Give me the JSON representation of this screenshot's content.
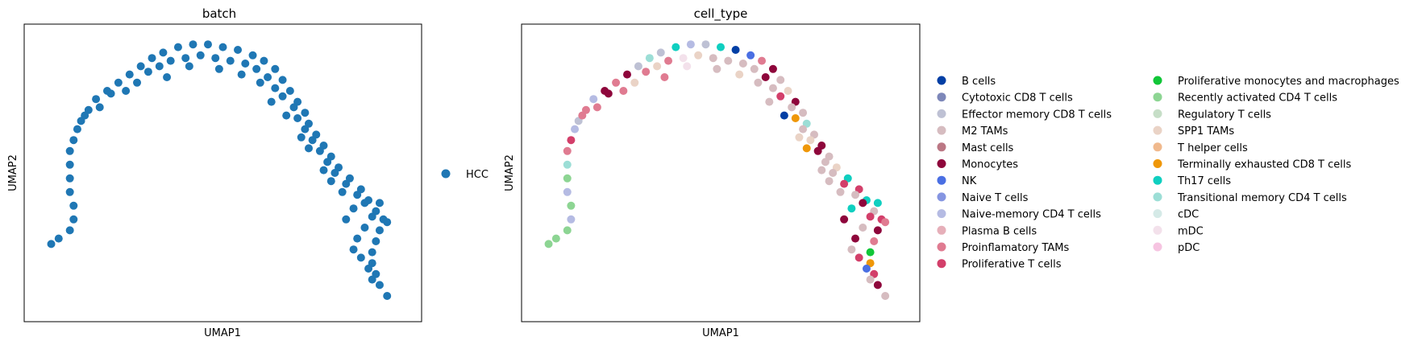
{
  "chart_data": [
    {
      "type": "scatter",
      "title": "batch",
      "xlabel": "UMAP1",
      "ylabel": "UMAP2",
      "xlim": [
        0,
        10
      ],
      "ylim": [
        0,
        10
      ],
      "grid": false,
      "ticks": false,
      "legend_position": "right",
      "legend": [
        {
          "name": "HCC",
          "color": "#1f77b4"
        }
      ],
      "series": [
        {
          "name": "HCC",
          "color": "#1f77b4",
          "description": "arc-shaped point cloud running from lower-left up over the top and down to lower-right",
          "points": [
            [
              0.4,
              2.4
            ],
            [
              0.6,
              2.6
            ],
            [
              0.9,
              2.9
            ],
            [
              1.0,
              3.3
            ],
            [
              1.0,
              3.8
            ],
            [
              0.9,
              4.3
            ],
            [
              0.9,
              4.8
            ],
            [
              0.9,
              5.3
            ],
            [
              0.9,
              5.8
            ],
            [
              1.0,
              6.2
            ],
            [
              1.1,
              6.6
            ],
            [
              1.2,
              6.9
            ],
            [
              1.4,
              7.3
            ],
            [
              1.6,
              7.7
            ],
            [
              1.9,
              8.0
            ],
            [
              2.2,
              8.3
            ],
            [
              2.5,
              8.6
            ],
            [
              2.8,
              8.9
            ],
            [
              3.1,
              9.2
            ],
            [
              3.4,
              9.4
            ],
            [
              3.8,
              9.6
            ],
            [
              4.2,
              9.7
            ],
            [
              4.6,
              9.7
            ],
            [
              5.0,
              9.6
            ],
            [
              5.4,
              9.5
            ],
            [
              5.8,
              9.3
            ],
            [
              6.1,
              9.1
            ],
            [
              6.4,
              8.8
            ],
            [
              6.6,
              8.4
            ],
            [
              6.8,
              8.0
            ],
            [
              7.0,
              7.6
            ],
            [
              7.2,
              7.2
            ],
            [
              7.3,
              6.8
            ],
            [
              7.5,
              6.4
            ],
            [
              7.7,
              6.0
            ],
            [
              7.9,
              5.6
            ],
            [
              8.1,
              5.2
            ],
            [
              8.4,
              4.8
            ],
            [
              8.7,
              4.4
            ],
            [
              8.9,
              4.0
            ],
            [
              9.1,
              3.6
            ],
            [
              9.3,
              3.3
            ],
            [
              9.2,
              2.9
            ],
            [
              9.1,
              2.5
            ],
            [
              9.0,
              2.1
            ],
            [
              9.0,
              1.7
            ],
            [
              9.1,
              1.3
            ],
            [
              9.2,
              0.9
            ],
            [
              9.4,
              0.5
            ],
            [
              1.3,
              7.1
            ],
            [
              1.7,
              7.4
            ],
            [
              2.0,
              7.9
            ],
            [
              2.4,
              8.0
            ],
            [
              2.7,
              8.3
            ],
            [
              3.0,
              8.7
            ],
            [
              3.3,
              8.9
            ],
            [
              3.6,
              9.1
            ],
            [
              4.0,
              9.2
            ],
            [
              4.4,
              9.3
            ],
            [
              4.8,
              9.2
            ],
            [
              5.2,
              9.1
            ],
            [
              5.6,
              9.0
            ],
            [
              5.9,
              8.8
            ],
            [
              6.2,
              8.5
            ],
            [
              6.4,
              8.1
            ],
            [
              6.6,
              7.8
            ],
            [
              6.9,
              7.4
            ],
            [
              7.0,
              7.0
            ],
            [
              7.2,
              6.6
            ],
            [
              7.4,
              6.2
            ],
            [
              7.6,
              5.8
            ],
            [
              7.8,
              5.4
            ],
            [
              8.0,
              5.0
            ],
            [
              8.3,
              4.6
            ],
            [
              8.6,
              4.2
            ],
            [
              8.8,
              3.9
            ],
            [
              9.0,
              3.4
            ],
            [
              8.8,
              3.0
            ],
            [
              8.6,
              2.6
            ],
            [
              8.5,
              2.2
            ],
            [
              8.7,
              1.9
            ],
            [
              8.9,
              1.5
            ],
            [
              9.0,
              1.1
            ],
            [
              3.5,
              8.5
            ],
            [
              4.1,
              8.9
            ],
            [
              4.9,
              8.8
            ],
            [
              5.5,
              8.6
            ],
            [
              6.0,
              8.3
            ],
            [
              6.3,
              7.6
            ],
            [
              6.7,
              7.1
            ],
            [
              7.1,
              6.3
            ],
            [
              7.3,
              5.9
            ],
            [
              7.7,
              5.1
            ],
            [
              8.2,
              4.3
            ],
            [
              8.5,
              3.7
            ],
            [
              9.2,
              3.9
            ],
            [
              9.4,
              3.2
            ],
            [
              8.3,
              3.3
            ],
            [
              7.9,
              4.7
            ]
          ]
        }
      ]
    },
    {
      "type": "scatter",
      "title": "cell_type",
      "xlabel": "UMAP1",
      "ylabel": "UMAP2",
      "xlim": [
        0,
        10
      ],
      "ylim": [
        0,
        10
      ],
      "grid": false,
      "ticks": false,
      "legend_position": "right",
      "legend": [
        {
          "name": "B cells",
          "color": "#023fa5"
        },
        {
          "name": "Cytotoxic CD8 T cells",
          "color": "#7d87b9"
        },
        {
          "name": "Effector memory CD8 T cells",
          "color": "#bec1d4"
        },
        {
          "name": "M2 TAMs",
          "color": "#d6bcc0"
        },
        {
          "name": "Mast cells",
          "color": "#bb7784"
        },
        {
          "name": "Monocytes",
          "color": "#8e063b"
        },
        {
          "name": "NK",
          "color": "#4a6fe3"
        },
        {
          "name": "Naive T cells",
          "color": "#8595e1"
        },
        {
          "name": "Naive-memory CD4 T cells",
          "color": "#b5bbe3"
        },
        {
          "name": "Plasma B cells",
          "color": "#e6afb9"
        },
        {
          "name": "Proinflamatory TAMs",
          "color": "#e07b91"
        },
        {
          "name": "Proliferative T cells",
          "color": "#d33f6a"
        },
        {
          "name": "Proliferative monocytes and macrophages",
          "color": "#11c638"
        },
        {
          "name": "Recently activated CD4 T cells",
          "color": "#8dd593"
        },
        {
          "name": "Regulatory T cells",
          "color": "#c6dec7"
        },
        {
          "name": "SPP1 TAMs",
          "color": "#ead3c6"
        },
        {
          "name": "T helper cells",
          "color": "#f0b98d"
        },
        {
          "name": "Terminally exhausted CD8 T cells",
          "color": "#ef9708"
        },
        {
          "name": "Th17 cells",
          "color": "#0fcfc0"
        },
        {
          "name": "Transitional memory CD4 T cells",
          "color": "#9cded6"
        },
        {
          "name": "cDC",
          "color": "#d5eae7"
        },
        {
          "name": "mDC",
          "color": "#f3e1eb"
        },
        {
          "name": "pDC",
          "color": "#f6c4e1"
        }
      ],
      "series_points": [
        [
          0.4,
          2.4,
          13
        ],
        [
          0.6,
          2.6,
          13
        ],
        [
          0.9,
          2.9,
          13
        ],
        [
          1.0,
          3.3,
          8
        ],
        [
          1.0,
          3.8,
          13
        ],
        [
          0.9,
          4.3,
          8
        ],
        [
          0.9,
          4.8,
          13
        ],
        [
          0.9,
          5.3,
          19
        ],
        [
          0.9,
          5.8,
          10
        ],
        [
          1.0,
          6.2,
          11
        ],
        [
          1.1,
          6.6,
          8
        ],
        [
          1.2,
          6.9,
          2
        ],
        [
          1.4,
          7.3,
          10
        ],
        [
          1.6,
          7.7,
          8
        ],
        [
          1.9,
          8.0,
          5
        ],
        [
          2.2,
          8.3,
          10
        ],
        [
          2.5,
          8.6,
          5
        ],
        [
          2.8,
          8.9,
          2
        ],
        [
          3.1,
          9.2,
          19
        ],
        [
          3.4,
          9.4,
          2
        ],
        [
          3.8,
          9.6,
          18
        ],
        [
          4.2,
          9.7,
          8
        ],
        [
          4.6,
          9.7,
          2
        ],
        [
          5.0,
          9.6,
          18
        ],
        [
          5.4,
          9.5,
          0
        ],
        [
          5.8,
          9.3,
          6
        ],
        [
          6.1,
          9.1,
          10
        ],
        [
          6.4,
          8.8,
          5
        ],
        [
          6.6,
          8.4,
          3
        ],
        [
          6.8,
          8.0,
          15
        ],
        [
          7.0,
          7.6,
          5
        ],
        [
          7.2,
          7.2,
          3
        ],
        [
          7.3,
          6.8,
          19
        ],
        [
          7.5,
          6.4,
          3
        ],
        [
          7.7,
          6.0,
          5
        ],
        [
          7.9,
          5.6,
          3
        ],
        [
          8.1,
          5.2,
          15
        ],
        [
          8.4,
          4.8,
          18
        ],
        [
          8.7,
          4.4,
          11
        ],
        [
          8.9,
          4.0,
          18
        ],
        [
          9.1,
          3.6,
          3
        ],
        [
          9.3,
          3.3,
          11
        ],
        [
          9.2,
          2.9,
          5
        ],
        [
          9.1,
          2.5,
          10
        ],
        [
          9.0,
          2.1,
          12
        ],
        [
          9.0,
          1.7,
          17
        ],
        [
          9.1,
          1.3,
          11
        ],
        [
          9.2,
          0.9,
          5
        ],
        [
          9.4,
          0.5,
          3
        ],
        [
          1.3,
          7.1,
          10
        ],
        [
          1.7,
          7.4,
          10
        ],
        [
          2.0,
          7.9,
          5
        ],
        [
          2.4,
          8.0,
          10
        ],
        [
          2.7,
          8.3,
          15
        ],
        [
          3.0,
          8.7,
          10
        ],
        [
          3.3,
          8.9,
          15
        ],
        [
          3.6,
          9.1,
          10
        ],
        [
          4.0,
          9.2,
          21
        ],
        [
          4.4,
          9.3,
          15
        ],
        [
          4.8,
          9.2,
          3
        ],
        [
          5.2,
          9.1,
          3
        ],
        [
          5.6,
          9.0,
          3
        ],
        [
          5.9,
          8.8,
          3
        ],
        [
          6.2,
          8.5,
          5
        ],
        [
          6.4,
          8.1,
          3
        ],
        [
          6.6,
          7.8,
          11
        ],
        [
          6.9,
          7.4,
          3
        ],
        [
          7.0,
          7.0,
          17
        ],
        [
          7.2,
          6.6,
          3
        ],
        [
          7.4,
          6.2,
          15
        ],
        [
          7.6,
          5.8,
          5
        ],
        [
          7.8,
          5.4,
          3
        ],
        [
          8.0,
          5.0,
          3
        ],
        [
          8.3,
          4.6,
          11
        ],
        [
          8.6,
          4.2,
          3
        ],
        [
          8.8,
          3.9,
          5
        ],
        [
          9.0,
          3.4,
          11
        ],
        [
          8.8,
          3.0,
          3
        ],
        [
          8.6,
          2.6,
          5
        ],
        [
          8.5,
          2.2,
          3
        ],
        [
          8.7,
          1.9,
          11
        ],
        [
          8.9,
          1.5,
          6
        ],
        [
          9.0,
          1.1,
          3
        ],
        [
          3.5,
          8.5,
          10
        ],
        [
          4.1,
          8.9,
          21
        ],
        [
          4.9,
          8.8,
          3
        ],
        [
          5.5,
          8.6,
          15
        ],
        [
          6.0,
          8.3,
          3
        ],
        [
          6.3,
          7.6,
          3
        ],
        [
          6.7,
          7.1,
          0
        ],
        [
          7.1,
          6.3,
          15
        ],
        [
          7.3,
          5.9,
          17
        ],
        [
          7.7,
          5.1,
          3
        ],
        [
          8.2,
          4.3,
          3
        ],
        [
          8.5,
          3.7,
          18
        ],
        [
          9.2,
          3.9,
          18
        ],
        [
          9.4,
          3.2,
          10
        ],
        [
          8.3,
          3.3,
          5
        ],
        [
          7.9,
          4.7,
          3
        ]
      ]
    }
  ],
  "batch_legend_label": "HCC"
}
